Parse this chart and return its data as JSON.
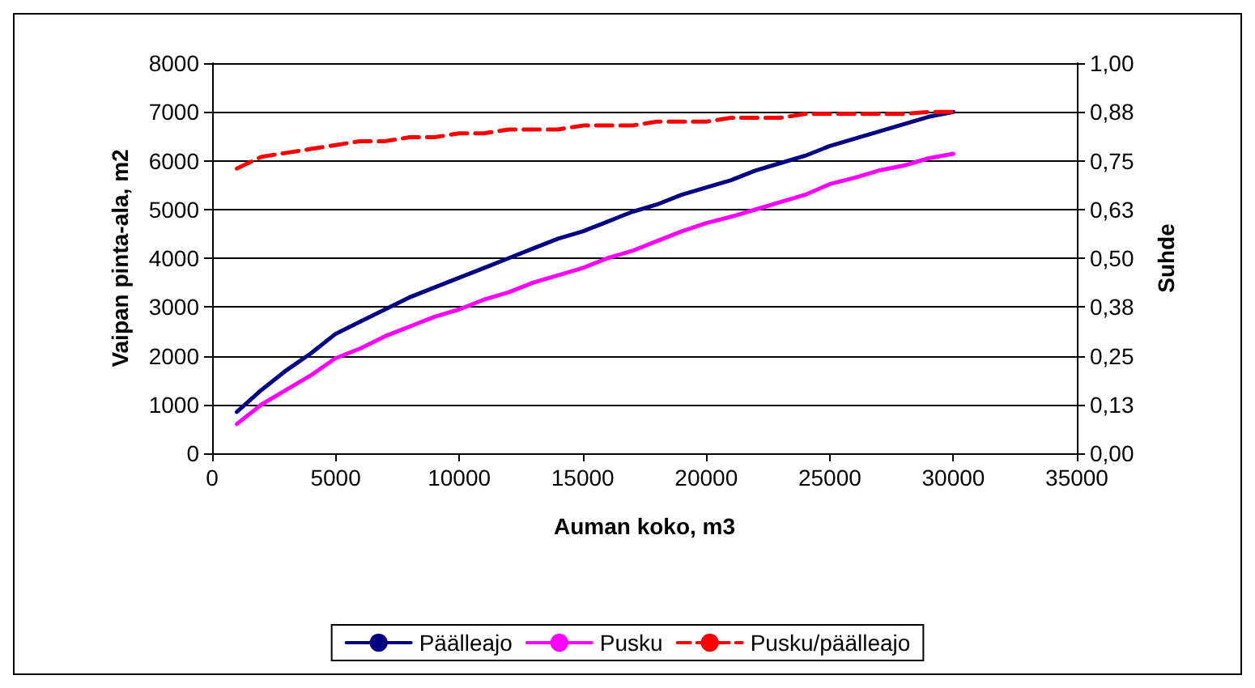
{
  "chart_data": {
    "type": "line",
    "xlabel": "Auman koko, m3",
    "ylabel": "Vaipan pinta-ala, m2",
    "y2label": "Suhde",
    "x": [
      1000,
      2000,
      3000,
      4000,
      5000,
      6000,
      7000,
      8000,
      9000,
      10000,
      11000,
      12000,
      13000,
      14000,
      15000,
      16000,
      17000,
      18000,
      19000,
      20000,
      21000,
      22000,
      23000,
      24000,
      25000,
      26000,
      27000,
      28000,
      29000,
      30000
    ],
    "series": [
      {
        "name": "Päälleajo",
        "color": "#000080",
        "line_style": "solid",
        "values": [
          850,
          1300,
          1700,
          2050,
          2450,
          2700,
          2950,
          3200,
          3400,
          3600,
          3800,
          4000,
          4200,
          4400,
          4550,
          4750,
          4950,
          5100,
          5300,
          5450,
          5600,
          5800,
          5950,
          6100,
          6300,
          6450,
          6600,
          6750,
          6900,
          7000
        ]
      },
      {
        "name": "Pusku",
        "color": "#ff00ff",
        "line_style": "solid",
        "values": [
          600,
          1000,
          1300,
          1600,
          1950,
          2150,
          2400,
          2600,
          2800,
          2950,
          3150,
          3300,
          3500,
          3650,
          3800,
          4000,
          4150,
          4350,
          4550,
          4720,
          4850,
          5000,
          5150,
          5300,
          5520,
          5650,
          5800,
          5900,
          6050,
          6140
        ]
      },
      {
        "name": "Pusku/päälleajo",
        "color": "#ff0000",
        "line_style": "dashed",
        "axis": "y2",
        "values": [
          0.73,
          0.76,
          0.77,
          0.78,
          0.79,
          0.8,
          0.8,
          0.81,
          0.81,
          0.82,
          0.82,
          0.83,
          0.83,
          0.83,
          0.84,
          0.84,
          0.84,
          0.85,
          0.85,
          0.85,
          0.86,
          0.86,
          0.86,
          0.87,
          0.87,
          0.87,
          0.87,
          0.87,
          0.875,
          0.875
        ]
      }
    ],
    "xlim": [
      0,
      35000
    ],
    "xticks": [
      0,
      5000,
      10000,
      15000,
      20000,
      25000,
      30000,
      35000
    ],
    "ylim": [
      0,
      8000
    ],
    "yticks": [
      0,
      1000,
      2000,
      3000,
      4000,
      5000,
      6000,
      7000,
      8000
    ],
    "y2lim": [
      0,
      1
    ],
    "y2ticks": [
      {
        "value": 0,
        "label": "0,00"
      },
      {
        "value": 0.125,
        "label": "0,13"
      },
      {
        "value": 0.25,
        "label": "0,25"
      },
      {
        "value": 0.375,
        "label": "0,38"
      },
      {
        "value": 0.5,
        "label": "0,50"
      },
      {
        "value": 0.625,
        "label": "0,63"
      },
      {
        "value": 0.75,
        "label": "0,75"
      },
      {
        "value": 0.875,
        "label": "0,88"
      },
      {
        "value": 1,
        "label": "1,00"
      }
    ],
    "grid": "y",
    "legend": "bottom",
    "marker": "none"
  }
}
